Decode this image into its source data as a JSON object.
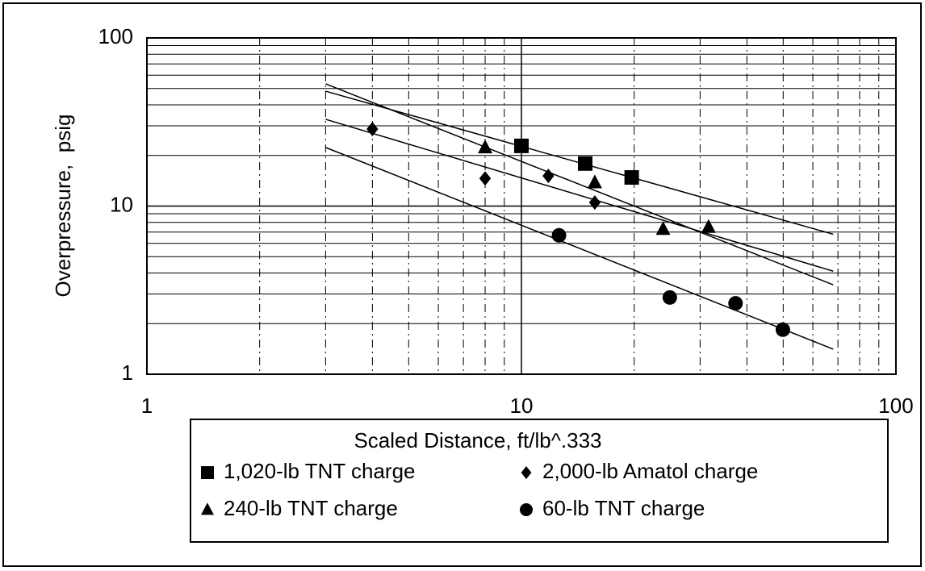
{
  "chart_data": {
    "type": "scatter",
    "x_label": "Scaled Distance, ft/lb^.333",
    "y_label": "Overpressure,  psig",
    "log_x": true,
    "log_y": true,
    "grid": true,
    "xlim": [
      1,
      100
    ],
    "ylim": [
      1,
      100
    ],
    "xticks": [
      1,
      10,
      100
    ],
    "yticks": [
      1,
      10,
      100
    ],
    "xminorticks": [
      2,
      3,
      4,
      5,
      6,
      7,
      8,
      9,
      20,
      30,
      40,
      50,
      60,
      70,
      80,
      90
    ],
    "yminorticks": [
      2,
      3,
      4,
      5,
      6,
      7,
      8,
      9,
      20,
      30,
      40,
      50,
      60,
      70,
      80,
      90
    ],
    "series": [
      {
        "name": "1,020-lb TNT charge",
        "marker": "square",
        "color": "#000000",
        "x": [
          10,
          14.8,
          19.7
        ],
        "values": [
          22.8,
          17.9,
          14.8
        ]
      },
      {
        "name": "2,000-lb Amatol charge",
        "marker": "diamond",
        "color": "#000000",
        "x": [
          4,
          8,
          11.8,
          15.7
        ],
        "values": [
          28.7,
          14.6,
          15.1,
          10.5
        ]
      },
      {
        "name": "240-lb TNT charge",
        "marker": "triangle",
        "color": "#000000",
        "x": [
          8,
          15.7,
          23.9,
          31.6
        ],
        "values": [
          22.3,
          13.8,
          7.3,
          7.5
        ]
      },
      {
        "name": "60-lb TNT charge",
        "marker": "circle",
        "color": "#000000",
        "x": [
          12.6,
          24.9,
          37.3,
          49.9
        ],
        "values": [
          6.7,
          2.86,
          2.64,
          1.84
        ]
      }
    ],
    "trendlines": [
      {
        "x": [
          3,
          68
        ],
        "values": [
          48.2,
          6.8
        ]
      },
      {
        "x": [
          3,
          68
        ],
        "values": [
          32.8,
          4.1
        ]
      },
      {
        "x": [
          3,
          68
        ],
        "values": [
          53.3,
          3.4
        ]
      },
      {
        "x": [
          3,
          68
        ],
        "values": [
          22.3,
          1.41
        ]
      }
    ]
  }
}
